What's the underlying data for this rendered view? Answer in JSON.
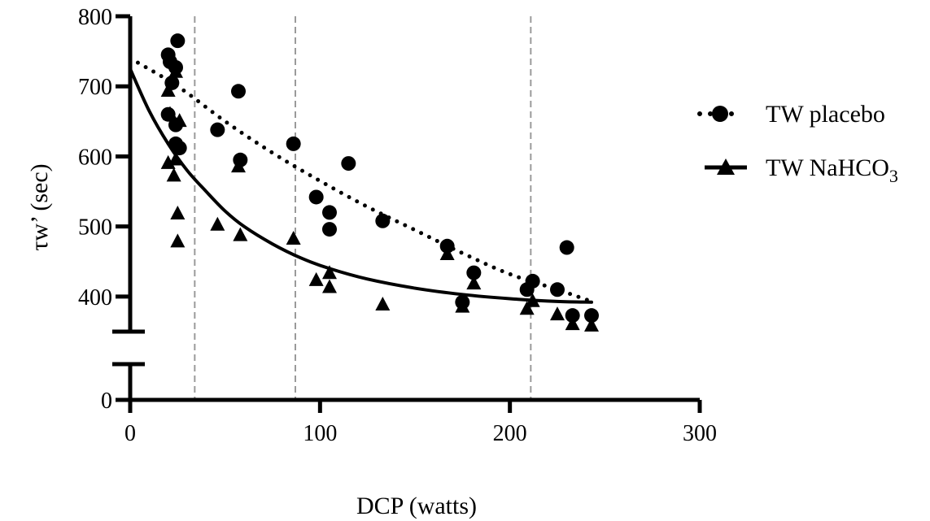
{
  "chart_data": {
    "type": "scatter",
    "xlabel": "DCP (watts)",
    "ylabel": "τw’ (sec)",
    "xlim": [
      0,
      300
    ],
    "ylim": [
      0,
      800
    ],
    "y_axis_break": [
      50,
      350
    ],
    "x_ticks": [
      "0",
      "100",
      "200",
      "300"
    ],
    "y_ticks": [
      "0",
      "400",
      "500",
      "600",
      "700",
      "800"
    ],
    "reference_lines_x": [
      34,
      87,
      211
    ],
    "legend_position": "right",
    "series": [
      {
        "name": "TW placebo",
        "marker": "circle",
        "fit": "dotted",
        "color": "#000000",
        "points": [
          [
            20,
            745
          ],
          [
            21,
            735
          ],
          [
            24,
            727
          ],
          [
            25,
            765
          ],
          [
            22,
            705
          ],
          [
            20,
            660
          ],
          [
            24,
            645
          ],
          [
            24,
            618
          ],
          [
            26,
            612
          ],
          [
            46,
            638
          ],
          [
            57,
            693
          ],
          [
            58,
            595
          ],
          [
            86,
            618
          ],
          [
            98,
            542
          ],
          [
            105,
            520
          ],
          [
            105,
            496
          ],
          [
            115,
            590
          ],
          [
            133,
            508
          ],
          [
            167,
            472
          ],
          [
            175,
            392
          ],
          [
            181,
            434
          ],
          [
            209,
            410
          ],
          [
            212,
            422
          ],
          [
            225,
            410
          ],
          [
            230,
            470
          ],
          [
            233,
            373
          ],
          [
            243,
            373
          ]
        ],
        "fit_curve": [
          [
            0,
            740
          ],
          [
            25,
            700
          ],
          [
            50,
            650
          ],
          [
            75,
            605
          ],
          [
            100,
            565
          ],
          [
            125,
            528
          ],
          [
            150,
            495
          ],
          [
            175,
            462
          ],
          [
            200,
            432
          ],
          [
            225,
            410
          ],
          [
            243,
            393
          ]
        ]
      },
      {
        "name": "TW NaHCO3",
        "marker": "triangle",
        "fit": "solid",
        "color": "#000000",
        "points": [
          [
            20,
            693
          ],
          [
            21,
            660
          ],
          [
            24,
            720
          ],
          [
            20,
            590
          ],
          [
            23,
            572
          ],
          [
            24,
            595
          ],
          [
            25,
            518
          ],
          [
            25,
            478
          ],
          [
            26,
            650
          ],
          [
            46,
            502
          ],
          [
            57,
            585
          ],
          [
            58,
            487
          ],
          [
            86,
            482
          ],
          [
            98,
            423
          ],
          [
            105,
            433
          ],
          [
            105,
            413
          ],
          [
            133,
            388
          ],
          [
            167,
            460
          ],
          [
            175,
            385
          ],
          [
            181,
            418
          ],
          [
            209,
            382
          ],
          [
            212,
            393
          ],
          [
            225,
            374
          ],
          [
            233,
            360
          ],
          [
            243,
            358
          ]
        ],
        "fit_curve": [
          [
            0,
            725
          ],
          [
            10,
            665
          ],
          [
            20,
            618
          ],
          [
            30,
            580
          ],
          [
            40,
            550
          ],
          [
            50,
            522
          ],
          [
            60,
            500
          ],
          [
            75,
            475
          ],
          [
            90,
            455
          ],
          [
            105,
            440
          ],
          [
            125,
            425
          ],
          [
            150,
            412
          ],
          [
            175,
            403
          ],
          [
            200,
            397
          ],
          [
            225,
            393
          ],
          [
            243,
            392
          ]
        ]
      }
    ]
  }
}
